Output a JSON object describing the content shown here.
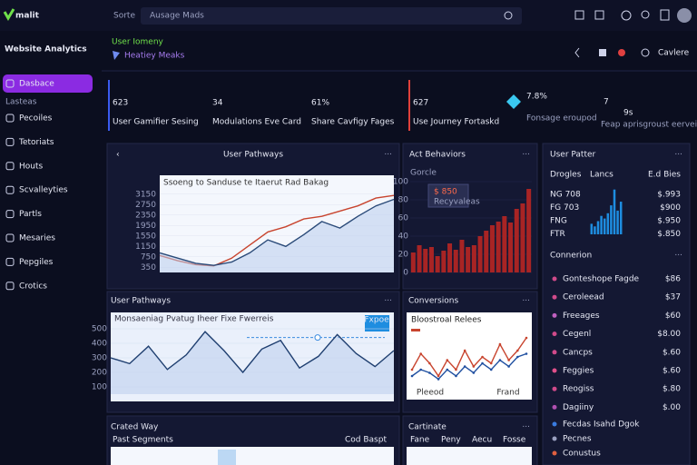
{
  "topbar": {
    "brand": "malit",
    "search_label": "Sorte",
    "search_placeholder": "Ausage Mads"
  },
  "sidebar": {
    "title": "Website Analytics",
    "section": "Lasteas",
    "items": [
      "Dasbace",
      "Pecoiles",
      "Tetoriats",
      "Houts",
      "Scvalleyties",
      "Partls",
      "Mesaries",
      "Pepgiles",
      "Crotics"
    ]
  },
  "header": {
    "eyebrow": "User Iomeny",
    "title": "Heatiey Meaks",
    "action": "Cavlere"
  },
  "kpis": [
    {
      "value": "623",
      "label": "User Gamifier Sesing"
    },
    {
      "value": "34",
      "label": "Modulations Eve Card"
    },
    {
      "value": "61%",
      "label": "Share Cavfigy Fages"
    },
    {
      "value": "627",
      "label": "Use Journey Fortaskd"
    },
    {
      "value": "7.8%",
      "label": "Fonsage eroupod"
    },
    {
      "value": "7",
      "unit": "9s",
      "label": "Feap aprisgroust eerveibly"
    }
  ],
  "pathways_chart": {
    "type": "line",
    "title": "User Pathways",
    "subtitle": "Ssoeng to Sanduse te Itaerut Rad Bakag",
    "ylim": [
      150,
      3350
    ],
    "yticks": [
      350,
      750,
      1150,
      1550,
      1950,
      2350,
      2750,
      3150
    ],
    "series": [
      {
        "color": "#c8442e",
        "values": [
          800,
          600,
          450,
          400,
          700,
          1200,
          1700,
          1900,
          2200,
          2300,
          2500,
          2700,
          3000,
          3100
        ]
      },
      {
        "color": "#2a4a78",
        "values": [
          900,
          700,
          500,
          420,
          550,
          900,
          1400,
          1150,
          1600,
          2100,
          1850,
          2300,
          2700,
          2950
        ]
      }
    ]
  },
  "behaviors_chart": {
    "type": "bar",
    "title": "Act Behaviors",
    "legend": "Gorcle",
    "tooltip": "$ 850",
    "tooltip_sub": "Recyvaleas",
    "color": "#a82424",
    "ylim": [
      0,
      100
    ],
    "yticks": [
      0,
      20,
      40,
      60,
      80,
      100
    ],
    "values": [
      22,
      30,
      26,
      28,
      18,
      24,
      32,
      25,
      36,
      28,
      30,
      40,
      46,
      52,
      56,
      62,
      55,
      70,
      76,
      92
    ]
  },
  "pattern_chart": {
    "type": "bar",
    "title": "User Patter",
    "columns": [
      "Drogles",
      "Lancs",
      "E.d Bies"
    ],
    "color": "#1e8de0",
    "ylim": [
      0,
      100
    ],
    "values": [
      20,
      15,
      25,
      35,
      30,
      40,
      55,
      85,
      45,
      62
    ],
    "rows": [
      {
        "label": "NG 708",
        "value": "$.993"
      },
      {
        "label": "FG 703",
        "value": "$900"
      },
      {
        "label": "FNG",
        "value": "$.950"
      },
      {
        "label": "FTR",
        "value": "$.850"
      }
    ]
  },
  "conversion_list": {
    "title": "Connerion",
    "items": [
      {
        "label": "Gonteshope Fagde",
        "value": "$86",
        "color": "#d04a8a"
      },
      {
        "label": "Ceroleead",
        "value": "$37",
        "color": "#d04a8a"
      },
      {
        "label": "Freeages",
        "value": "$60",
        "color": "#c060c0"
      },
      {
        "label": "Cegenl",
        "value": "$8.00",
        "color": "#d04a8a"
      },
      {
        "label": "Cancps",
        "value": "$.60",
        "color": "#d04a8a"
      },
      {
        "label": "Feggies",
        "value": "$.60",
        "color": "#e0508a"
      },
      {
        "label": "Reogiss",
        "value": "$.80",
        "color": "#d04a8a"
      },
      {
        "label": "Dagiiny",
        "value": "$.00",
        "color": "#b050b0"
      }
    ],
    "footer": [
      {
        "label": "Fecdas Isahd Dgok",
        "color": "#3a7be0"
      },
      {
        "label": "Pecnes",
        "color": "#9aa0c0"
      },
      {
        "label": "Conustus",
        "color": "#e06040"
      }
    ]
  },
  "pathways_chart_2": {
    "type": "line",
    "title": "User Pathways",
    "subtitle": "Monsaeniag Pvatug Iheer Fixe Fwerreis",
    "button": "Fxpoe",
    "ylim": [
      50,
      550
    ],
    "yticks": [
      100,
      200,
      300,
      400,
      500
    ],
    "reference": 440,
    "series": [
      {
        "color": "#1f3f70",
        "values": [
          300,
          260,
          380,
          220,
          320,
          480,
          350,
          200,
          360,
          420,
          230,
          310,
          460,
          330,
          240,
          350
        ]
      }
    ]
  },
  "conversions_chart": {
    "type": "line",
    "title": "Conversions",
    "subtitle": "Bloostroal Relees",
    "categories": [
      "Pleeod",
      "Frand"
    ],
    "ylim": [
      0,
      100
    ],
    "series": [
      {
        "color": "#c8442e",
        "values": [
          30,
          55,
          40,
          20,
          45,
          30,
          60,
          35,
          50,
          40,
          70,
          45,
          60,
          80
        ]
      },
      {
        "color": "#1f4fa0",
        "values": [
          20,
          30,
          25,
          15,
          30,
          20,
          35,
          25,
          40,
          30,
          45,
          35,
          50,
          55
        ]
      }
    ]
  },
  "table_left": {
    "title": "Crated Way",
    "columns": [
      "Past Segments",
      "Cod Baspt"
    ]
  },
  "table_right": {
    "title": "Cartinate",
    "columns": [
      "Fane",
      "Peny",
      "Aecu",
      "Fosse"
    ]
  }
}
